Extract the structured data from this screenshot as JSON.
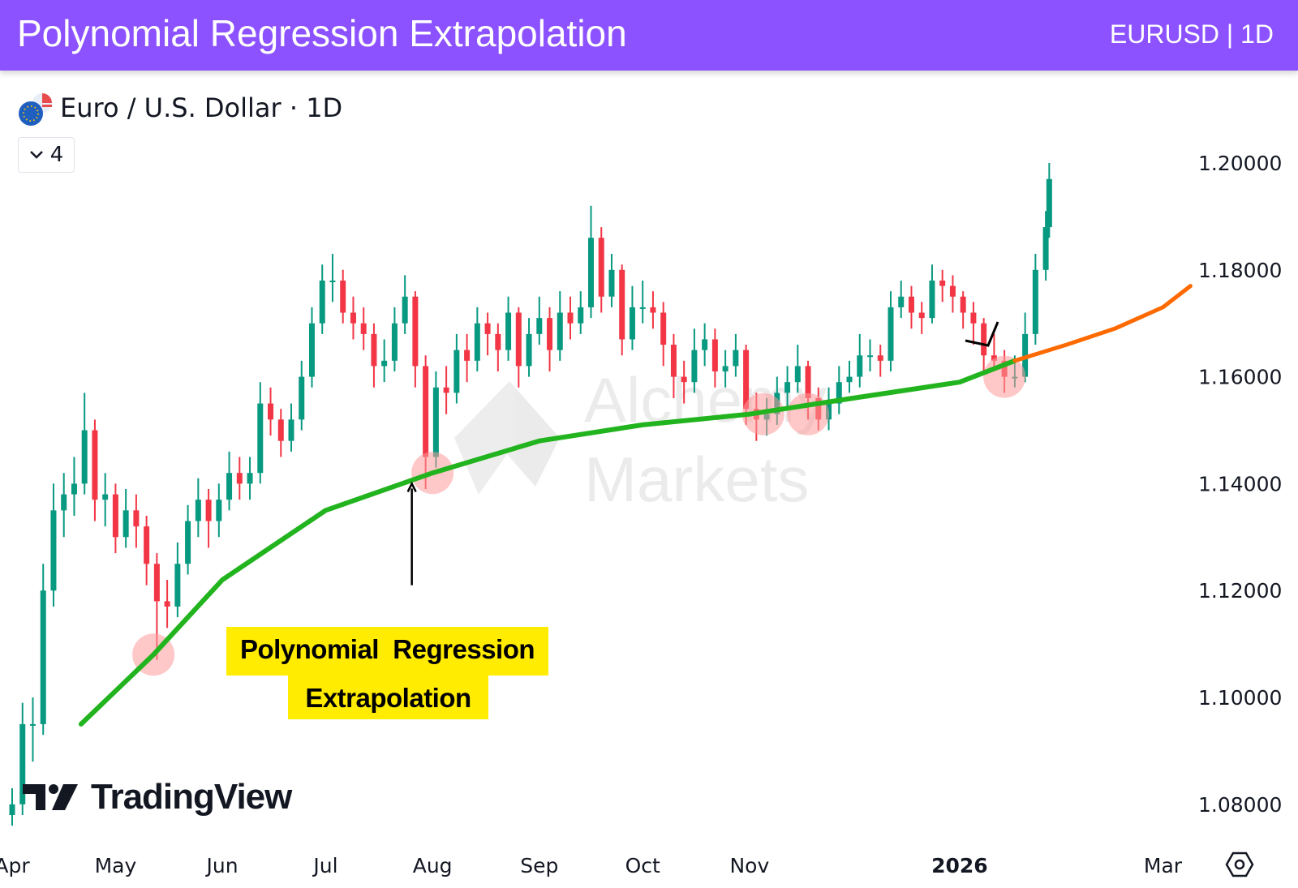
{
  "header": {
    "title": "Polynomial Regression Extrapolation",
    "ticker": "EURUSD | 1D",
    "color": "#8c52ff"
  },
  "legend": {
    "symbol": "Euro / U.S. Dollar · 1D",
    "indicator_count": "4"
  },
  "callout": {
    "line1": "Polynomial  Regression",
    "line2": "Extrapolation"
  },
  "logo": {
    "text": "TradingView"
  },
  "watermark": {
    "line1": "Alchemy",
    "line2": "Markets"
  },
  "chart_data": {
    "type": "candlestick",
    "title": "",
    "colors": {
      "up": "#089981",
      "down": "#f23645",
      "fit": "#22b41e",
      "extrapolation": "#ff6a00",
      "touch": "#ff9b9b"
    },
    "yaxis": {
      "ticks": [
        "1.08000",
        "1.10000",
        "1.12000",
        "1.14000",
        "1.16000",
        "1.18000",
        "1.20000"
      ],
      "range": [
        1.077,
        1.212
      ],
      "side": "right"
    },
    "xaxis": {
      "ticks": [
        {
          "label": "Apr",
          "date": "2025-04-01"
        },
        {
          "label": "May",
          "date": "2025-05-01"
        },
        {
          "label": "Jun",
          "date": "2025-06-01"
        },
        {
          "label": "Jul",
          "date": "2025-07-01"
        },
        {
          "label": "Aug",
          "date": "2025-08-01"
        },
        {
          "label": "Sep",
          "date": "2025-09-01"
        },
        {
          "label": "Oct",
          "date": "2025-10-01"
        },
        {
          "label": "Nov",
          "date": "2025-11-01"
        },
        {
          "label": "2026",
          "date": "2026-01-01"
        },
        {
          "label": "Mar",
          "date": "2026-03-01"
        }
      ]
    },
    "candles": [
      [
        "2025-04-01",
        1.078,
        1.083,
        1.076,
        1.08
      ],
      [
        "2025-04-04",
        1.08,
        1.099,
        1.078,
        1.095
      ],
      [
        "2025-04-07",
        1.095,
        1.1,
        1.088,
        1.095
      ],
      [
        "2025-04-10",
        1.095,
        1.125,
        1.093,
        1.12
      ],
      [
        "2025-04-13",
        1.12,
        1.14,
        1.117,
        1.135
      ],
      [
        "2025-04-16",
        1.135,
        1.142,
        1.13,
        1.138
      ],
      [
        "2025-04-19",
        1.138,
        1.145,
        1.134,
        1.14
      ],
      [
        "2025-04-22",
        1.14,
        1.157,
        1.138,
        1.15
      ],
      [
        "2025-04-25",
        1.15,
        1.152,
        1.133,
        1.137
      ],
      [
        "2025-04-28",
        1.137,
        1.142,
        1.132,
        1.138
      ],
      [
        "2025-05-01",
        1.138,
        1.14,
        1.127,
        1.13
      ],
      [
        "2025-05-04",
        1.13,
        1.139,
        1.128,
        1.135
      ],
      [
        "2025-05-07",
        1.135,
        1.138,
        1.128,
        1.132
      ],
      [
        "2025-05-10",
        1.132,
        1.134,
        1.121,
        1.125
      ],
      [
        "2025-05-13",
        1.125,
        1.127,
        1.107,
        1.118
      ],
      [
        "2025-05-16",
        1.118,
        1.122,
        1.113,
        1.117
      ],
      [
        "2025-05-19",
        1.117,
        1.129,
        1.115,
        1.125
      ],
      [
        "2025-05-22",
        1.125,
        1.136,
        1.123,
        1.133
      ],
      [
        "2025-05-25",
        1.133,
        1.141,
        1.13,
        1.137
      ],
      [
        "2025-05-28",
        1.137,
        1.139,
        1.128,
        1.133
      ],
      [
        "2025-05-31",
        1.133,
        1.14,
        1.13,
        1.137
      ],
      [
        "2025-06-03",
        1.137,
        1.146,
        1.135,
        1.142
      ],
      [
        "2025-06-06",
        1.142,
        1.145,
        1.137,
        1.14
      ],
      [
        "2025-06-09",
        1.14,
        1.145,
        1.137,
        1.142
      ],
      [
        "2025-06-12",
        1.142,
        1.159,
        1.14,
        1.155
      ],
      [
        "2025-06-15",
        1.155,
        1.158,
        1.149,
        1.152
      ],
      [
        "2025-06-18",
        1.152,
        1.154,
        1.145,
        1.148
      ],
      [
        "2025-06-21",
        1.148,
        1.155,
        1.146,
        1.152
      ],
      [
        "2025-06-24",
        1.152,
        1.163,
        1.15,
        1.16
      ],
      [
        "2025-06-27",
        1.16,
        1.173,
        1.158,
        1.17
      ],
      [
        "2025-06-30",
        1.17,
        1.181,
        1.168,
        1.178
      ],
      [
        "2025-07-03",
        1.178,
        1.183,
        1.174,
        1.178
      ],
      [
        "2025-07-06",
        1.178,
        1.18,
        1.17,
        1.172
      ],
      [
        "2025-07-09",
        1.172,
        1.175,
        1.167,
        1.17
      ],
      [
        "2025-07-12",
        1.17,
        1.173,
        1.165,
        1.168
      ],
      [
        "2025-07-15",
        1.168,
        1.17,
        1.158,
        1.162
      ],
      [
        "2025-07-18",
        1.162,
        1.167,
        1.159,
        1.163
      ],
      [
        "2025-07-21",
        1.163,
        1.173,
        1.161,
        1.17
      ],
      [
        "2025-07-24",
        1.17,
        1.179,
        1.168,
        1.175
      ],
      [
        "2025-07-27",
        1.175,
        1.176,
        1.158,
        1.162
      ],
      [
        "2025-07-30",
        1.162,
        1.164,
        1.139,
        1.145
      ],
      [
        "2025-08-02",
        1.145,
        1.161,
        1.143,
        1.158
      ],
      [
        "2025-08-05",
        1.158,
        1.162,
        1.153,
        1.157
      ],
      [
        "2025-08-08",
        1.157,
        1.168,
        1.155,
        1.165
      ],
      [
        "2025-08-11",
        1.165,
        1.168,
        1.159,
        1.163
      ],
      [
        "2025-08-14",
        1.163,
        1.173,
        1.161,
        1.17
      ],
      [
        "2025-08-17",
        1.17,
        1.172,
        1.164,
        1.168
      ],
      [
        "2025-08-20",
        1.168,
        1.17,
        1.161,
        1.165
      ],
      [
        "2025-08-23",
        1.165,
        1.175,
        1.163,
        1.172
      ],
      [
        "2025-08-26",
        1.172,
        1.173,
        1.158,
        1.162
      ],
      [
        "2025-08-29",
        1.162,
        1.171,
        1.16,
        1.168
      ],
      [
        "2025-09-01",
        1.168,
        1.175,
        1.166,
        1.171
      ],
      [
        "2025-09-04",
        1.171,
        1.173,
        1.161,
        1.165
      ],
      [
        "2025-09-07",
        1.165,
        1.176,
        1.163,
        1.172
      ],
      [
        "2025-09-10",
        1.172,
        1.175,
        1.167,
        1.17
      ],
      [
        "2025-09-13",
        1.17,
        1.176,
        1.168,
        1.173
      ],
      [
        "2025-09-16",
        1.173,
        1.192,
        1.171,
        1.186
      ],
      [
        "2025-09-19",
        1.186,
        1.188,
        1.172,
        1.175
      ],
      [
        "2025-09-22",
        1.175,
        1.183,
        1.173,
        1.18
      ],
      [
        "2025-09-25",
        1.18,
        1.181,
        1.164,
        1.167
      ],
      [
        "2025-09-28",
        1.167,
        1.177,
        1.165,
        1.173
      ],
      [
        "2025-10-01",
        1.173,
        1.178,
        1.17,
        1.173
      ],
      [
        "2025-10-04",
        1.173,
        1.176,
        1.169,
        1.172
      ],
      [
        "2025-10-07",
        1.172,
        1.174,
        1.162,
        1.166
      ],
      [
        "2025-10-10",
        1.166,
        1.168,
        1.156,
        1.16
      ],
      [
        "2025-10-13",
        1.16,
        1.163,
        1.155,
        1.159
      ],
      [
        "2025-10-16",
        1.159,
        1.169,
        1.157,
        1.165
      ],
      [
        "2025-10-19",
        1.165,
        1.17,
        1.162,
        1.167
      ],
      [
        "2025-10-22",
        1.167,
        1.169,
        1.158,
        1.161
      ],
      [
        "2025-10-25",
        1.161,
        1.165,
        1.158,
        1.162
      ],
      [
        "2025-10-28",
        1.162,
        1.168,
        1.16,
        1.165
      ],
      [
        "2025-10-31",
        1.165,
        1.166,
        1.151,
        1.154
      ],
      [
        "2025-11-03",
        1.154,
        1.157,
        1.148,
        1.152
      ],
      [
        "2025-11-06",
        1.152,
        1.156,
        1.149,
        1.153
      ],
      [
        "2025-11-09",
        1.153,
        1.16,
        1.151,
        1.157
      ],
      [
        "2025-11-12",
        1.157,
        1.162,
        1.154,
        1.159
      ],
      [
        "2025-11-15",
        1.159,
        1.166,
        1.157,
        1.162
      ],
      [
        "2025-11-18",
        1.162,
        1.163,
        1.152,
        1.156
      ],
      [
        "2025-11-21",
        1.156,
        1.158,
        1.15,
        1.152
      ],
      [
        "2025-11-24",
        1.152,
        1.158,
        1.15,
        1.155
      ],
      [
        "2025-11-27",
        1.155,
        1.162,
        1.153,
        1.159
      ],
      [
        "2025-11-30",
        1.159,
        1.163,
        1.157,
        1.16
      ],
      [
        "2025-12-03",
        1.16,
        1.168,
        1.158,
        1.164
      ],
      [
        "2025-12-06",
        1.164,
        1.167,
        1.161,
        1.164
      ],
      [
        "2025-12-09",
        1.164,
        1.166,
        1.16,
        1.163
      ],
      [
        "2025-12-12",
        1.163,
        1.176,
        1.161,
        1.173
      ],
      [
        "2025-12-15",
        1.173,
        1.178,
        1.171,
        1.175
      ],
      [
        "2025-12-18",
        1.175,
        1.177,
        1.169,
        1.172
      ],
      [
        "2025-12-21",
        1.172,
        1.174,
        1.168,
        1.171
      ],
      [
        "2025-12-24",
        1.171,
        1.181,
        1.17,
        1.178
      ],
      [
        "2025-12-27",
        1.178,
        1.18,
        1.174,
        1.177
      ],
      [
        "2025-12-30",
        1.177,
        1.179,
        1.172,
        1.175
      ],
      [
        "2026-01-02",
        1.175,
        1.176,
        1.169,
        1.172
      ],
      [
        "2026-01-05",
        1.172,
        1.174,
        1.166,
        1.17
      ],
      [
        "2026-01-08",
        1.17,
        1.171,
        1.161,
        1.164
      ],
      [
        "2026-01-11",
        1.164,
        1.168,
        1.161,
        1.163
      ],
      [
        "2026-01-14",
        1.163,
        1.165,
        1.157,
        1.16
      ],
      [
        "2026-01-17",
        1.16,
        1.164,
        1.158,
        1.16
      ],
      [
        "2026-01-20",
        1.16,
        1.172,
        1.159,
        1.168
      ],
      [
        "2026-01-23",
        1.168,
        1.183,
        1.166,
        1.18
      ],
      [
        "2026-01-26",
        1.18,
        1.191,
        1.178,
        1.188
      ],
      [
        "2026-01-27",
        1.188,
        1.2,
        1.186,
        1.197
      ]
    ],
    "regression_fit": [
      [
        "2025-04-21",
        1.095
      ],
      [
        "2025-05-12",
        1.108
      ],
      [
        "2025-06-01",
        1.122
      ],
      [
        "2025-07-01",
        1.135
      ],
      [
        "2025-08-01",
        1.142
      ],
      [
        "2025-09-01",
        1.148
      ],
      [
        "2025-10-01",
        1.151
      ],
      [
        "2025-11-01",
        1.153
      ],
      [
        "2025-12-01",
        1.156
      ],
      [
        "2026-01-01",
        1.159
      ],
      [
        "2026-01-17",
        1.163
      ]
    ],
    "extrapolation": [
      [
        "2026-01-17",
        1.163
      ],
      [
        "2026-02-01",
        1.166
      ],
      [
        "2026-02-15",
        1.169
      ],
      [
        "2026-03-01",
        1.173
      ],
      [
        "2026-03-09",
        1.177
      ]
    ],
    "touch_points": [
      [
        "2025-05-12",
        1.108
      ],
      [
        "2025-08-01",
        1.142
      ],
      [
        "2025-11-05",
        1.153
      ],
      [
        "2025-11-18",
        1.153
      ],
      [
        "2026-01-14",
        1.16
      ]
    ],
    "annotation_arrow": {
      "date": "2025-07-26",
      "from": 1.121,
      "to": 1.14
    }
  }
}
